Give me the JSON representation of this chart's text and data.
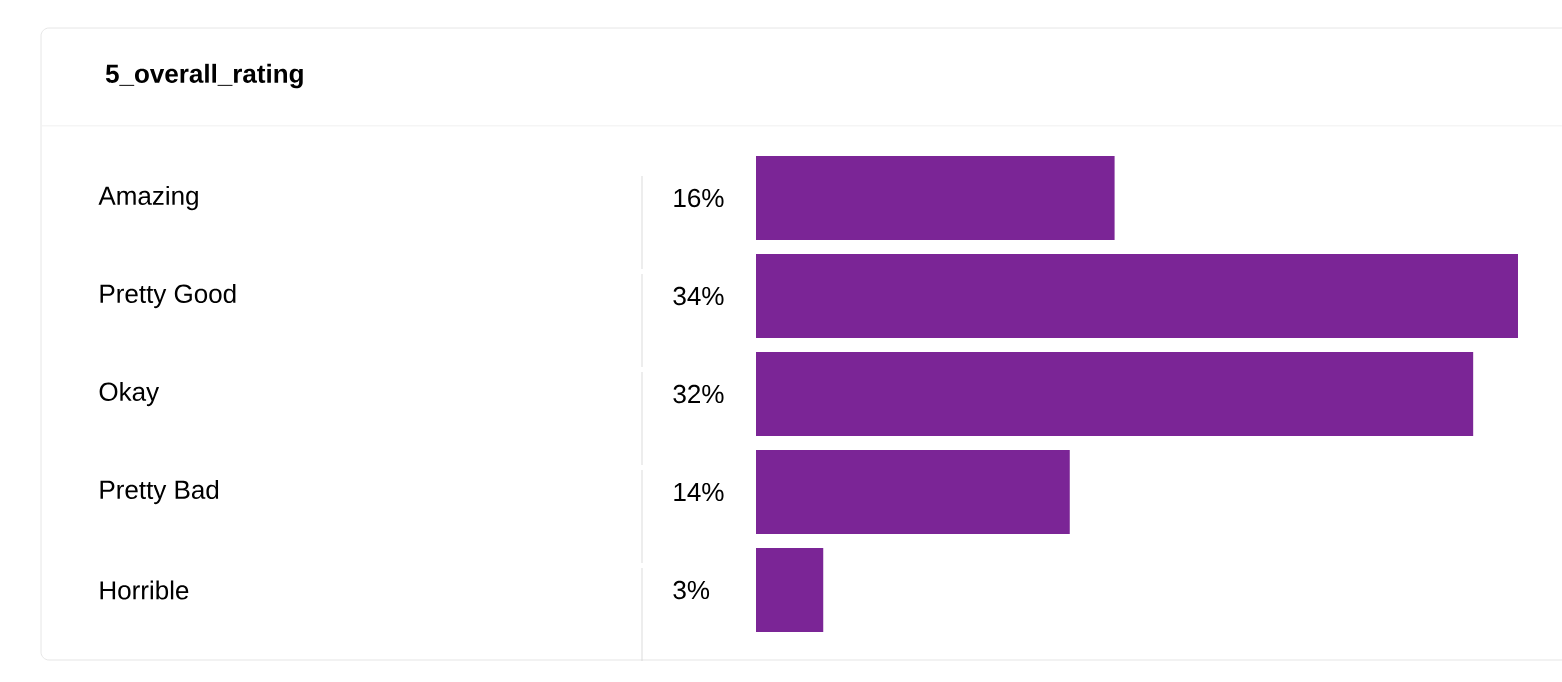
{
  "chart_data": {
    "type": "bar",
    "orientation": "horizontal",
    "title": "5_overall_rating",
    "categories": [
      "Amazing",
      "Pretty Good",
      "Okay",
      "Pretty Bad",
      "Horrible"
    ],
    "values": [
      16,
      34,
      32,
      14,
      3
    ],
    "value_labels": [
      "16%",
      "34%",
      "32%",
      "14%",
      "3%"
    ],
    "color": "#7b2596"
  }
}
